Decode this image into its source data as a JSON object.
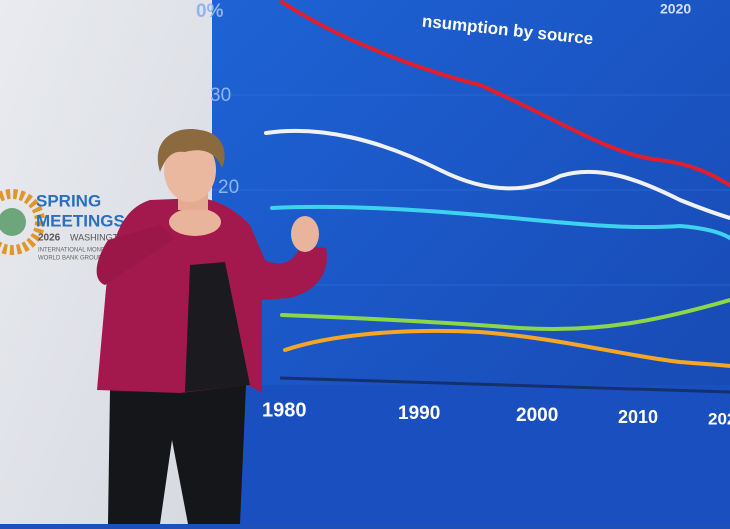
{
  "banner": {
    "line1": "SPRING",
    "line2": "MEETINGS",
    "year": "2026",
    "city": "WASHINGTON",
    "org1": "INTERNATIONAL MONETARY",
    "org2": "WORLD BANK GROUP"
  },
  "screen": {
    "title": "nsumption by source",
    "corner_year": "2020",
    "y_labels": [
      "0%",
      "30",
      "20"
    ],
    "x_labels": [
      "1980",
      "1990",
      "2000",
      "2010",
      "202"
    ]
  }
}
